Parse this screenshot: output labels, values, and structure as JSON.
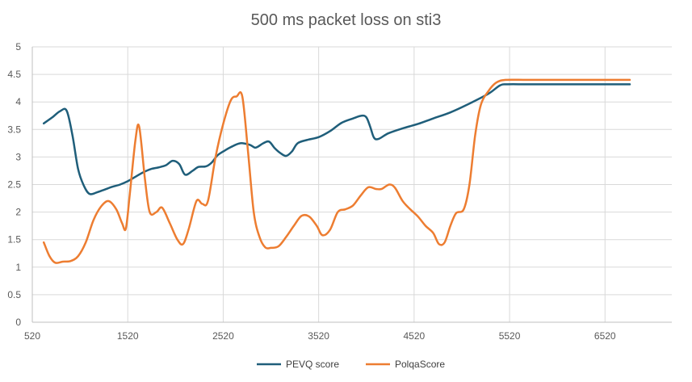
{
  "chart_data": {
    "type": "line",
    "title": "500 ms packet loss on sti3",
    "xlabel": "",
    "ylabel": "",
    "xlim": [
      520,
      7220
    ],
    "ylim": [
      0,
      5
    ],
    "x_ticks": [
      "520",
      "1520",
      "2520",
      "3520",
      "4520",
      "5520",
      "6520"
    ],
    "y_ticks": [
      "0",
      "0.5",
      "1",
      "1.5",
      "2",
      "2.5",
      "3",
      "3.5",
      "4",
      "4.5",
      "5"
    ],
    "grid": true,
    "legend_position": "bottom",
    "series": [
      {
        "name": "PEVQ score",
        "color": "#1F5E7A",
        "points": [
          [
            640,
            3.61
          ],
          [
            730,
            3.72
          ],
          [
            810,
            3.83
          ],
          [
            880,
            3.84
          ],
          [
            940,
            3.4
          ],
          [
            1000,
            2.78
          ],
          [
            1060,
            2.48
          ],
          [
            1120,
            2.33
          ],
          [
            1200,
            2.36
          ],
          [
            1280,
            2.41
          ],
          [
            1360,
            2.46
          ],
          [
            1440,
            2.5
          ],
          [
            1520,
            2.56
          ],
          [
            1600,
            2.64
          ],
          [
            1680,
            2.72
          ],
          [
            1760,
            2.78
          ],
          [
            1840,
            2.81
          ],
          [
            1920,
            2.85
          ],
          [
            1990,
            2.93
          ],
          [
            2060,
            2.87
          ],
          [
            2120,
            2.68
          ],
          [
            2200,
            2.75
          ],
          [
            2260,
            2.82
          ],
          [
            2340,
            2.83
          ],
          [
            2400,
            2.9
          ],
          [
            2460,
            3.03
          ],
          [
            2520,
            3.1
          ],
          [
            2600,
            3.18
          ],
          [
            2700,
            3.25
          ],
          [
            2800,
            3.22
          ],
          [
            2860,
            3.17
          ],
          [
            2940,
            3.25
          ],
          [
            3000,
            3.28
          ],
          [
            3060,
            3.16
          ],
          [
            3120,
            3.07
          ],
          [
            3180,
            3.02
          ],
          [
            3240,
            3.1
          ],
          [
            3300,
            3.25
          ],
          [
            3400,
            3.31
          ],
          [
            3520,
            3.36
          ],
          [
            3640,
            3.47
          ],
          [
            3760,
            3.62
          ],
          [
            3880,
            3.7
          ],
          [
            3970,
            3.75
          ],
          [
            4020,
            3.72
          ],
          [
            4060,
            3.55
          ],
          [
            4100,
            3.35
          ],
          [
            4150,
            3.33
          ],
          [
            4250,
            3.43
          ],
          [
            4400,
            3.52
          ],
          [
            4560,
            3.6
          ],
          [
            4720,
            3.7
          ],
          [
            4900,
            3.81
          ],
          [
            5100,
            3.97
          ],
          [
            5300,
            4.15
          ],
          [
            5420,
            4.3
          ],
          [
            5500,
            4.32
          ],
          [
            5700,
            4.32
          ],
          [
            6000,
            4.32
          ],
          [
            6400,
            4.32
          ],
          [
            6780,
            4.32
          ]
        ]
      },
      {
        "name": "PolqaScore",
        "color": "#ED7D31",
        "points": [
          [
            640,
            1.45
          ],
          [
            700,
            1.2
          ],
          [
            760,
            1.08
          ],
          [
            840,
            1.1
          ],
          [
            920,
            1.11
          ],
          [
            1000,
            1.2
          ],
          [
            1080,
            1.45
          ],
          [
            1160,
            1.85
          ],
          [
            1240,
            2.1
          ],
          [
            1320,
            2.2
          ],
          [
            1400,
            2.05
          ],
          [
            1460,
            1.8
          ],
          [
            1500,
            1.7
          ],
          [
            1540,
            2.3
          ],
          [
            1600,
            3.3
          ],
          [
            1640,
            3.55
          ],
          [
            1700,
            2.6
          ],
          [
            1750,
            2.0
          ],
          [
            1820,
            2.0
          ],
          [
            1880,
            2.08
          ],
          [
            1960,
            1.8
          ],
          [
            2040,
            1.5
          ],
          [
            2100,
            1.42
          ],
          [
            2160,
            1.7
          ],
          [
            2240,
            2.2
          ],
          [
            2300,
            2.15
          ],
          [
            2360,
            2.2
          ],
          [
            2440,
            3.0
          ],
          [
            2520,
            3.6
          ],
          [
            2600,
            4.03
          ],
          [
            2660,
            4.1
          ],
          [
            2720,
            4.1
          ],
          [
            2780,
            3.1
          ],
          [
            2840,
            2.0
          ],
          [
            2900,
            1.55
          ],
          [
            2960,
            1.36
          ],
          [
            3020,
            1.35
          ],
          [
            3100,
            1.38
          ],
          [
            3180,
            1.55
          ],
          [
            3260,
            1.75
          ],
          [
            3340,
            1.93
          ],
          [
            3420,
            1.92
          ],
          [
            3500,
            1.75
          ],
          [
            3560,
            1.58
          ],
          [
            3640,
            1.68
          ],
          [
            3720,
            2.0
          ],
          [
            3800,
            2.05
          ],
          [
            3880,
            2.12
          ],
          [
            3960,
            2.3
          ],
          [
            4040,
            2.45
          ],
          [
            4120,
            2.42
          ],
          [
            4180,
            2.42
          ],
          [
            4260,
            2.5
          ],
          [
            4320,
            2.44
          ],
          [
            4400,
            2.2
          ],
          [
            4480,
            2.05
          ],
          [
            4560,
            1.92
          ],
          [
            4640,
            1.75
          ],
          [
            4720,
            1.62
          ],
          [
            4780,
            1.42
          ],
          [
            4840,
            1.45
          ],
          [
            4900,
            1.75
          ],
          [
            4960,
            1.98
          ],
          [
            5040,
            2.05
          ],
          [
            5100,
            2.5
          ],
          [
            5160,
            3.4
          ],
          [
            5220,
            3.95
          ],
          [
            5300,
            4.2
          ],
          [
            5380,
            4.35
          ],
          [
            5480,
            4.4
          ],
          [
            5700,
            4.4
          ],
          [
            6000,
            4.4
          ],
          [
            6400,
            4.4
          ],
          [
            6780,
            4.4
          ]
        ]
      }
    ]
  }
}
